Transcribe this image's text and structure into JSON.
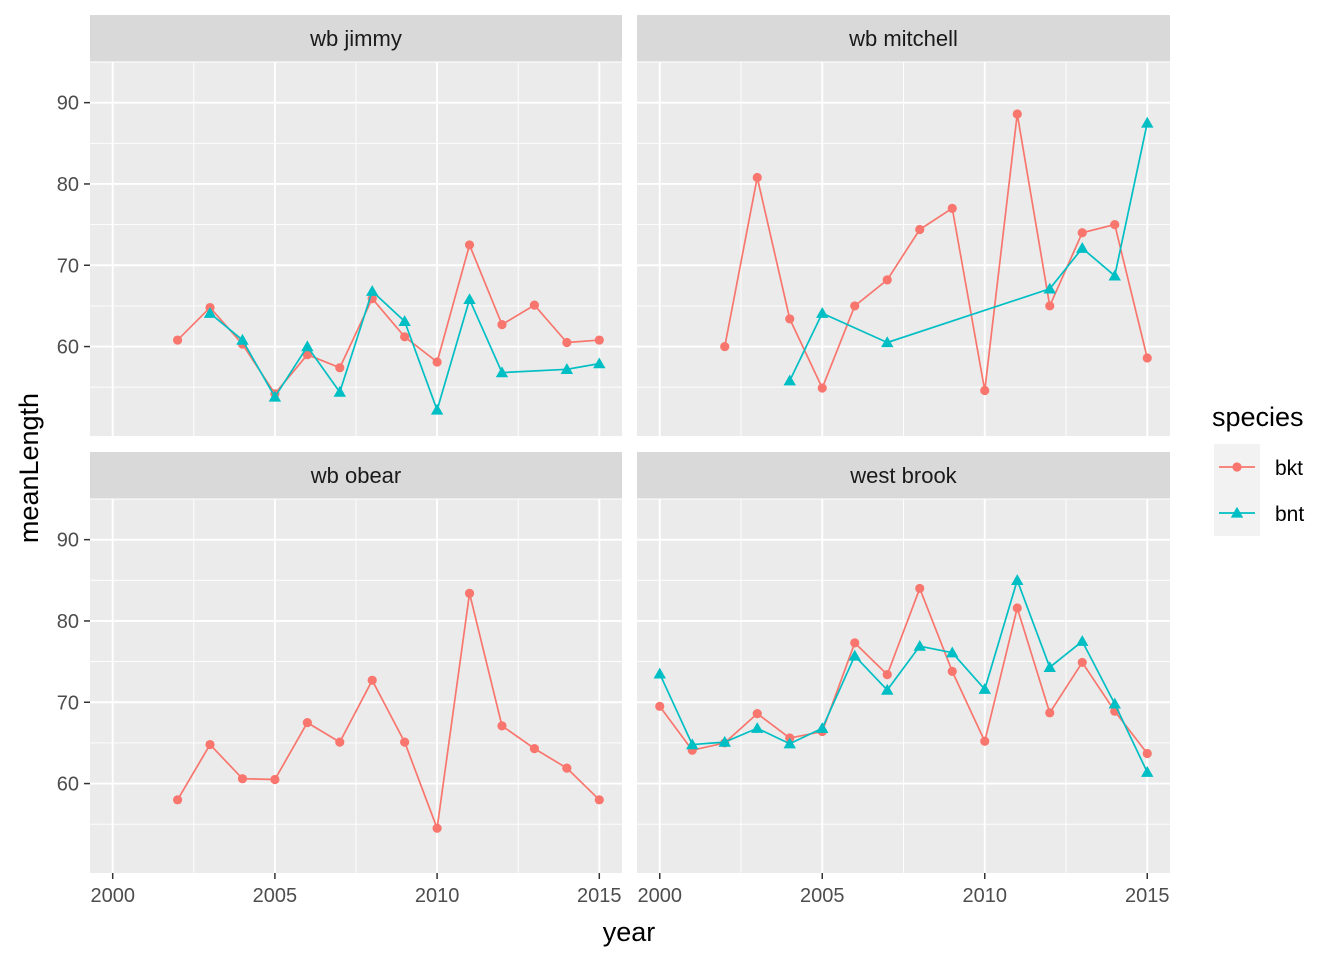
{
  "chart_data": {
    "type": "line",
    "facet_layout": "2x2",
    "xlabel": "year",
    "ylabel": "meanLength",
    "xlim": [
      1999.3,
      2015.7
    ],
    "ylim": [
      49,
      95
    ],
    "x_ticks": [
      2000,
      2005,
      2010,
      2015
    ],
    "y_ticks": [
      60,
      70,
      80,
      90
    ],
    "grid": true,
    "legend": {
      "title": "species",
      "position": "right",
      "entries": [
        {
          "name": "bkt",
          "color": "#F8766D",
          "shape": "circle"
        },
        {
          "name": "bnt",
          "color": "#00BFC4",
          "shape": "triangle"
        }
      ]
    },
    "panels": [
      {
        "title": "wb jimmy",
        "series": [
          {
            "name": "bkt",
            "x": [
              2002,
              2003,
              2004,
              2005,
              2006,
              2007,
              2008,
              2009,
              2010,
              2011,
              2012,
              2013,
              2014,
              2015
            ],
            "y": [
              60.8,
              64.8,
              60.3,
              54.2,
              59.0,
              57.4,
              65.9,
              61.2,
              58.1,
              72.5,
              62.7,
              65.1,
              60.5,
              60.8
            ]
          },
          {
            "name": "bnt",
            "x": [
              2003,
              2004,
              2005,
              2006,
              2007,
              2008,
              2009,
              2010,
              2011,
              2012,
              2014,
              2015
            ],
            "y": [
              64.1,
              60.8,
              53.8,
              60.0,
              54.4,
              66.8,
              63.1,
              52.2,
              65.8,
              56.8,
              57.2,
              57.9
            ]
          }
        ]
      },
      {
        "title": "wb mitchell",
        "series": [
          {
            "name": "bkt",
            "x": [
              2002,
              2003,
              2004,
              2005,
              2006,
              2007,
              2008,
              2009,
              2010,
              2011,
              2012,
              2013,
              2014,
              2015
            ],
            "y": [
              60.0,
              80.8,
              63.4,
              54.9,
              65.0,
              68.2,
              74.4,
              77.0,
              54.6,
              88.6,
              65.0,
              74.0,
              75.0,
              58.6
            ]
          },
          {
            "name": "bnt",
            "x": [
              2004,
              2005,
              2007,
              2012,
              2013,
              2014,
              2015
            ],
            "y": [
              55.8,
              64.1,
              60.5,
              67.1,
              72.1,
              68.7,
              87.5
            ]
          }
        ]
      },
      {
        "title": "wb obear",
        "series": [
          {
            "name": "bkt",
            "x": [
              2002,
              2003,
              2004,
              2005,
              2006,
              2007,
              2008,
              2009,
              2010,
              2011,
              2012,
              2013,
              2014,
              2015
            ],
            "y": [
              58.0,
              64.8,
              60.6,
              60.5,
              67.5,
              65.1,
              72.7,
              65.1,
              54.5,
              83.4,
              67.1,
              64.3,
              61.9,
              58.0
            ]
          }
        ]
      },
      {
        "title": "west brook",
        "series": [
          {
            "name": "bkt",
            "x": [
              2000,
              2001,
              2002,
              2003,
              2004,
              2005,
              2006,
              2007,
              2008,
              2009,
              2010,
              2011,
              2012,
              2013,
              2014,
              2015
            ],
            "y": [
              69.5,
              64.1,
              65.0,
              68.6,
              65.6,
              66.4,
              77.3,
              73.4,
              84.0,
              73.8,
              65.2,
              81.6,
              68.7,
              74.9,
              68.9,
              63.7
            ]
          },
          {
            "name": "bnt",
            "x": [
              2000,
              2001,
              2002,
              2003,
              2004,
              2005,
              2006,
              2007,
              2008,
              2009,
              2010,
              2011,
              2012,
              2013,
              2014,
              2015
            ],
            "y": [
              73.5,
              64.8,
              65.1,
              66.8,
              64.9,
              66.8,
              75.7,
              71.5,
              76.9,
              76.1,
              71.6,
              85.0,
              74.3,
              77.5,
              69.8,
              61.4
            ]
          }
        ]
      }
    ]
  }
}
